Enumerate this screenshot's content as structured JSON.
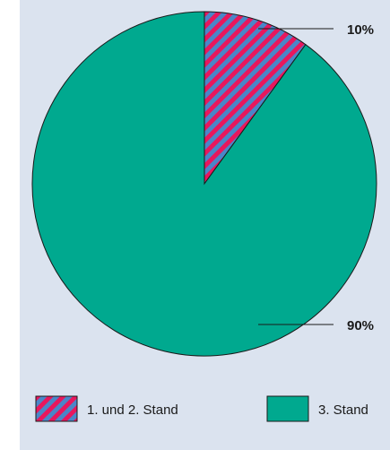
{
  "chart_data": {
    "type": "pie",
    "categories": [
      "1. und 2. Stand",
      "3. Stand"
    ],
    "values": [
      10,
      90
    ],
    "data_labels": [
      "10%",
      "90%"
    ],
    "legend_placement": "bottom",
    "title": "",
    "colors": {
      "slice_1_stripe_a": "#e8175d",
      "slice_1_stripe_b": "#4a86c8",
      "slice_2": "#00a98f",
      "background": "#dbe3ef",
      "outline": "#1a1a1a"
    }
  }
}
